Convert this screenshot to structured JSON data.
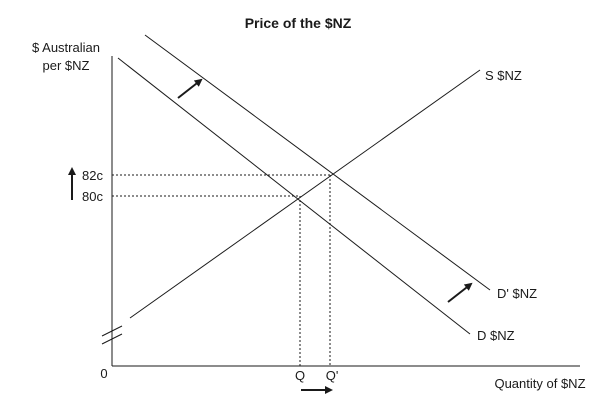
{
  "title": "Price of the $NZ",
  "y_axis_label_line1": "$ Australian",
  "y_axis_label_line2": "per $NZ",
  "x_axis_label": "Quantity of $NZ",
  "origin_label": "0",
  "price_labels": {
    "new": "82c",
    "old": "80c"
  },
  "quantity_labels": {
    "old": "Q",
    "new": "Q'"
  },
  "curve_labels": {
    "supply": "S $NZ",
    "new_demand": "D' $NZ",
    "demand": "D $NZ"
  },
  "colors": {
    "line": "#1a1a1a",
    "background": "#ffffff"
  }
}
